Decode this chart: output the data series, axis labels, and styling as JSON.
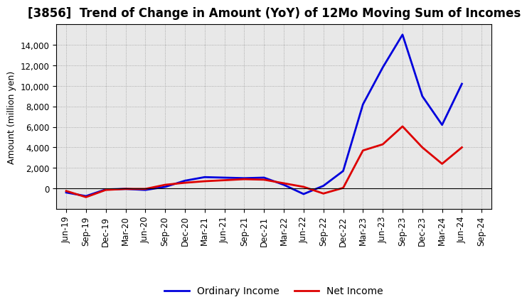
{
  "title": "[3856]  Trend of Change in Amount (YoY) of 12Mo Moving Sum of Incomes",
  "ylabel": "Amount (million yen)",
  "x_labels": [
    "Jun-19",
    "Sep-19",
    "Dec-19",
    "Mar-20",
    "Jun-20",
    "Sep-20",
    "Dec-20",
    "Mar-21",
    "Jun-21",
    "Sep-21",
    "Dec-21",
    "Mar-22",
    "Jun-22",
    "Sep-22",
    "Dec-22",
    "Mar-23",
    "Jun-23",
    "Sep-23",
    "Dec-23",
    "Mar-24",
    "Jun-24",
    "Sep-24"
  ],
  "ordinary_income": [
    -400,
    -750,
    -100,
    -50,
    -150,
    150,
    750,
    1100,
    1050,
    1000,
    1050,
    350,
    -550,
    250,
    1700,
    8200,
    11800,
    15000,
    9000,
    6200,
    10200,
    null
  ],
  "net_income": [
    -250,
    -850,
    -150,
    -50,
    -50,
    350,
    550,
    700,
    800,
    900,
    850,
    500,
    150,
    -500,
    50,
    3700,
    4300,
    6050,
    4000,
    2400,
    4000,
    null
  ],
  "ordinary_color": "#0000dd",
  "net_color": "#dd0000",
  "ylim": [
    -2000,
    16000
  ],
  "yticks": [
    0,
    2000,
    4000,
    6000,
    8000,
    10000,
    12000,
    14000
  ],
  "plot_bg_color": "#e8e8e8",
  "fig_bg_color": "#ffffff",
  "grid_color": "#999999",
  "title_fontsize": 12,
  "label_fontsize": 9,
  "tick_fontsize": 8.5,
  "legend_fontsize": 10,
  "linewidth": 2.0
}
